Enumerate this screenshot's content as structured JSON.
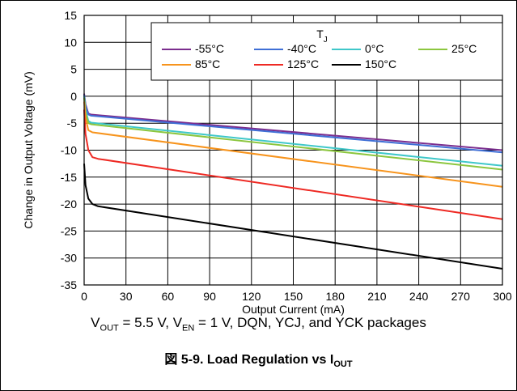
{
  "chart_data": {
    "type": "line",
    "xlabel": "Output Current (mA)",
    "ylabel": "Change in Output Voltage (mV)",
    "xlim": [
      0,
      300
    ],
    "ylim": [
      -35,
      15
    ],
    "xticks": [
      0,
      30,
      60,
      90,
      120,
      150,
      180,
      210,
      240,
      270,
      300
    ],
    "yticks": [
      15,
      10,
      5,
      0,
      -5,
      -10,
      -15,
      -20,
      -25,
      -30,
      -35
    ],
    "grid": true,
    "legend": {
      "title": "T",
      "title_sub": "J",
      "placement": "top-right"
    },
    "series": [
      {
        "name": "-55°C",
        "color": "#7b2d8e",
        "x": [
          0,
          1,
          3,
          5,
          300
        ],
        "y": [
          0.5,
          -1.5,
          -3.2,
          -3.4,
          -10.0
        ]
      },
      {
        "name": "-40°C",
        "color": "#3f6fd6",
        "x": [
          0,
          1,
          3,
          5,
          300
        ],
        "y": [
          0.3,
          -1.8,
          -3.4,
          -3.6,
          -10.4
        ]
      },
      {
        "name": "0°C",
        "color": "#3fc7c9",
        "x": [
          0,
          1,
          3,
          5,
          300
        ],
        "y": [
          0,
          -2.5,
          -4.6,
          -4.9,
          -12.9
        ]
      },
      {
        "name": "25°C",
        "color": "#8cc63f",
        "x": [
          0,
          1,
          3,
          5,
          300
        ],
        "y": [
          -0.3,
          -3.0,
          -5.0,
          -5.2,
          -13.6
        ]
      },
      {
        "name": "85°C",
        "color": "#f7941d",
        "x": [
          0,
          1,
          3,
          6,
          300
        ],
        "y": [
          -1.0,
          -4.0,
          -6.3,
          -6.7,
          -16.8
        ]
      },
      {
        "name": "125°C",
        "color": "#ee2a24",
        "x": [
          0,
          1,
          3,
          6,
          10,
          300
        ],
        "y": [
          -2.5,
          -7.0,
          -10.0,
          -11.3,
          -11.6,
          -22.8
        ]
      },
      {
        "name": "150°C",
        "color": "#000000",
        "x": [
          0,
          1,
          3,
          6,
          10,
          300
        ],
        "y": [
          -12.5,
          -16.5,
          -19.0,
          -20.0,
          -20.4,
          -32.0
        ]
      }
    ]
  },
  "caption": {
    "v_out_label": "V",
    "v_out_sub": "OUT",
    "v_out_value": " = 5.5 V, V",
    "v_en_sub": "EN",
    "v_en_rest": " = 1 V, DQN, YCJ, and YCK packages"
  },
  "figure_title": {
    "main": "図 5-9. Load Regulation vs I",
    "sub": "OUT"
  }
}
